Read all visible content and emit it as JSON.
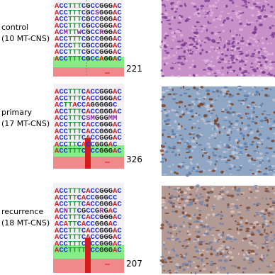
{
  "panels": [
    {
      "label": "control",
      "group": "(10 MT-CNS)",
      "number": 221,
      "sequences": [
        "ACCTTTCGCCGGGAC",
        "ACCTTTCGCSGGGAC",
        "ACCTTTCGCCGGGAC",
        "ACCTTTCGCCGGGAC",
        "ACMTTWCGCCRGGAC",
        "ACCTTTCGCCGGGAC",
        "ACCCTTCGCCGGGAC",
        "ACCTTTCGCCGGGAC",
        "ACCTTTCGCCAGGAC"
      ]
    },
    {
      "label": "primary",
      "group": "(17 MT-CNS)",
      "number": 326,
      "sequences": [
        "ACCTTTCACCGGGAC",
        "ACCTTTCACCGGGAC",
        "ACTTACCAGGGGGC",
        "ACCTTTCACCGGGAC",
        "ACCTTTCSMGGGMM",
        "ACCTTTCACCGGGAC",
        "ACCTTTCACCGGGAC",
        "ACCTTTCACCGGGAC",
        "ACCTTCACCGGGAC",
        "ACCTTTCACCGGGAC"
      ]
    },
    {
      "label": "recurrence",
      "group": "(18 MT-CNS)",
      "number": 207,
      "sequences": [
        "ACCTTTCACCGGGAC",
        "ACCTTCACCGGGCC",
        "ACCTTTCACCGGGAC",
        "ACNTTCGCCGRGAC",
        "ACCTTTCACCGGGAC",
        "ACATTCACCGGGAC",
        "ACCTTTCACCGGGAC",
        "ACCTTTCACCGGGAC",
        "ACCTTTCACCGGGAC",
        "ACCTTTTACCGGGAC"
      ]
    }
  ]
}
